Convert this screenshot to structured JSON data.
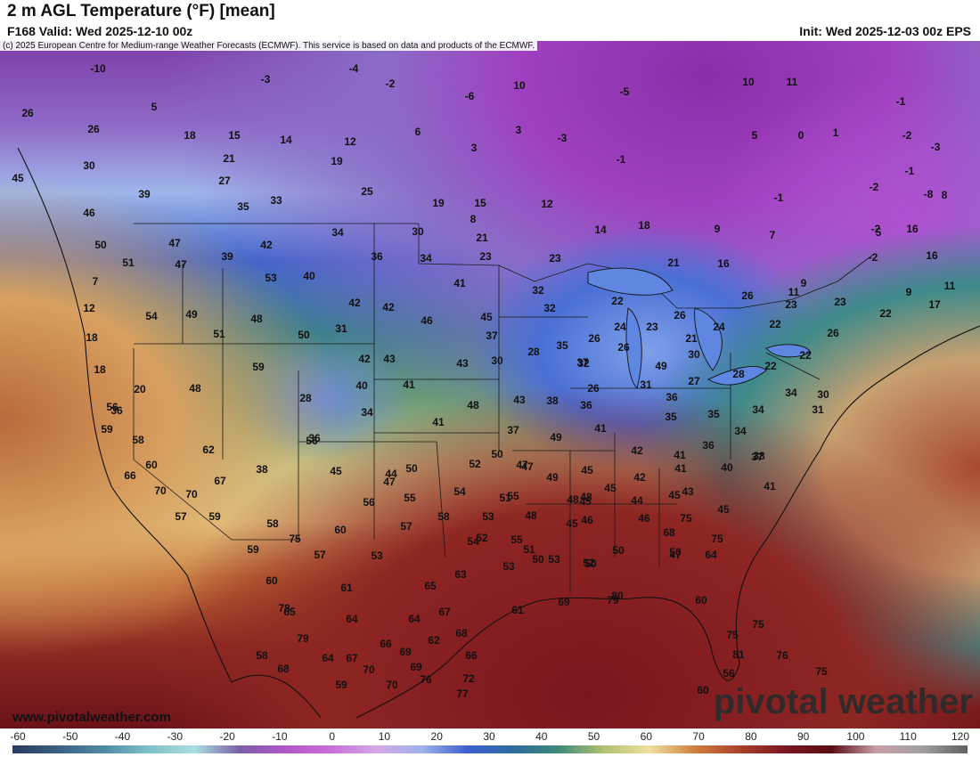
{
  "header": {
    "title": "2 m AGL Temperature (°F) [mean]",
    "valid": "F168 Valid: Wed 2025-12-10 00z",
    "init": "Init: Wed 2025-12-03 00z EPS"
  },
  "credit": "(c) 2025 European Centre for Medium-range Weather Forecasts (ECMWF). This service is based on data and products of the ECMWF.",
  "site_url": "www.pivotalweather.com",
  "logo_text": "pivotal weather",
  "colorbar": {
    "labels": [
      "-60",
      "-50",
      "-40",
      "-30",
      "-20",
      "-10",
      "0",
      "10",
      "20",
      "30",
      "40",
      "50",
      "60",
      "70",
      "80",
      "90",
      "100",
      "110",
      "120"
    ],
    "colors": [
      "#2a3b5e",
      "#3a5f84",
      "#4f8aa6",
      "#7fc0c6",
      "#a9dfe0",
      "#7b5fa8",
      "#b057c9",
      "#c86fd8",
      "#d4a8e6",
      "#9fb3ea",
      "#3e5fd0",
      "#2e6b9c",
      "#3f8a7a",
      "#b0c070",
      "#f0e0a0",
      "#d08040",
      "#a8402a",
      "#7a1620",
      "#5a0c14",
      "#c8a0a8",
      "#a0a0a0",
      "#606060"
    ]
  },
  "map": {
    "temperature_labels": [
      "-10",
      "-3",
      "-4",
      "-2",
      "-6",
      "10",
      "5",
      "-5",
      "10",
      "11",
      "26",
      "5",
      "-1",
      "0",
      "1",
      "-2",
      "-3",
      "-1",
      "3",
      "26",
      "18",
      "15",
      "14",
      "12",
      "6",
      "3",
      "-3",
      "19",
      "8",
      "-1",
      "45",
      "30",
      "21",
      "9",
      "27",
      "25",
      "19",
      "15",
      "12",
      "39",
      "35",
      "33",
      "-1",
      "-2",
      "5",
      "-8",
      "7",
      "8",
      "16",
      "46",
      "-2",
      "16",
      "14",
      "18",
      "9",
      "47",
      "42",
      "34",
      "30",
      "21",
      "-2",
      "50",
      "51",
      "47",
      "39",
      "36",
      "34",
      "23",
      "23",
      "16",
      "17",
      "7",
      "53",
      "40",
      "41",
      "32",
      "22",
      "21",
      "9",
      "11",
      "11",
      "12",
      "54",
      "49",
      "48",
      "42",
      "42",
      "46",
      "45",
      "32",
      "23",
      "22",
      "26",
      "23",
      "22",
      "18",
      "51",
      "50",
      "31",
      "37",
      "35",
      "26",
      "24",
      "23",
      "26",
      "24",
      "21",
      "26",
      "26",
      "18",
      "59",
      "42",
      "43",
      "43",
      "30",
      "28",
      "37",
      "28",
      "30",
      "22",
      "22",
      "20",
      "48",
      "40",
      "41",
      "49",
      "26",
      "31",
      "27",
      "30",
      "36",
      "32",
      "28",
      "34",
      "34",
      "31",
      "36",
      "56",
      "34",
      "41",
      "48",
      "43",
      "38",
      "36",
      "35",
      "35",
      "59",
      "58",
      "56",
      "49",
      "48",
      "47",
      "44",
      "37",
      "41",
      "42",
      "41",
      "36",
      "34",
      "38",
      "62",
      "36",
      "45",
      "52",
      "50",
      "47",
      "45",
      "41",
      "37",
      "60",
      "38",
      "50",
      "47",
      "49",
      "45",
      "42",
      "45",
      "40",
      "41",
      "66",
      "67",
      "54",
      "51",
      "55",
      "48",
      "45",
      "44",
      "43",
      "45",
      "70",
      "56",
      "55",
      "53",
      "48",
      "45",
      "46",
      "46",
      "75",
      "70",
      "57",
      "58",
      "60",
      "57",
      "54",
      "55",
      "52",
      "53",
      "51",
      "50",
      "50",
      "47",
      "64",
      "68",
      "75",
      "58",
      "59",
      "57",
      "53",
      "53",
      "50",
      "52",
      "50",
      "75",
      "59",
      "60",
      "61",
      "63",
      "65",
      "67",
      "68",
      "66",
      "69",
      "80",
      "61",
      "60",
      "64",
      "65",
      "64",
      "62",
      "66",
      "69",
      "79",
      "75",
      "78",
      "79",
      "64",
      "67",
      "69",
      "72",
      "81",
      "75",
      "58",
      "68",
      "70",
      "77",
      "76",
      "75",
      "60",
      "56",
      "59",
      "70",
      "76"
    ]
  }
}
